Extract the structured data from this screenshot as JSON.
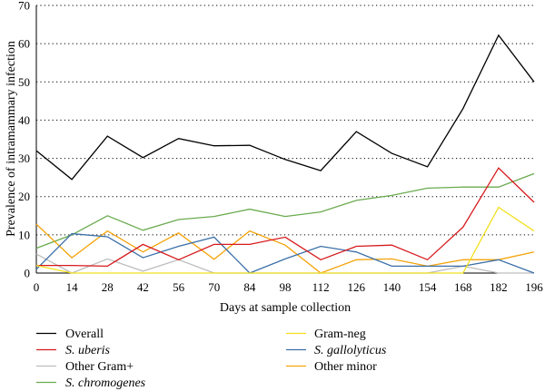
{
  "chart_data": {
    "type": "line",
    "xlabel": "Days at sample collection",
    "ylabel": "Prevalence of intramammary infection",
    "xlim": [
      0,
      196
    ],
    "ylim": [
      0,
      70
    ],
    "x_ticks": [
      0,
      14,
      28,
      42,
      56,
      70,
      84,
      98,
      112,
      126,
      140,
      154,
      168,
      182,
      196
    ],
    "y_ticks": [
      0,
      10,
      20,
      30,
      40,
      50,
      60,
      70
    ],
    "grid": "horizontal-dotted",
    "legend_position": "bottom",
    "x": [
      0,
      14,
      28,
      42,
      56,
      70,
      84,
      98,
      112,
      126,
      140,
      154,
      168,
      182,
      196
    ],
    "series": [
      {
        "name": "Overall",
        "italic": false,
        "color": "#000000",
        "values": [
          32,
          24.5,
          35.8,
          30.2,
          35.2,
          33.3,
          33.4,
          29.7,
          26.8,
          37,
          31.3,
          27.8,
          43,
          62.2,
          50
        ]
      },
      {
        "name": "Gram-neg",
        "italic": false,
        "color": "#f2e01c",
        "values": [
          2,
          0,
          0,
          0,
          0,
          0,
          0,
          0,
          0,
          0,
          0,
          0,
          0,
          17.2,
          11
        ]
      },
      {
        "name": "S. uberis",
        "italic": true,
        "color": "#d7191c",
        "values": [
          2,
          2,
          1.8,
          7.5,
          3.5,
          7.5,
          7.5,
          9.4,
          3.5,
          7,
          7.3,
          3.5,
          12,
          27.5,
          18.5
        ]
      },
      {
        "name": "S. gallolyticus",
        "italic": true,
        "color": "#3b6fa8",
        "values": [
          1,
          10.3,
          9.5,
          4,
          7,
          9.4,
          0,
          3.7,
          7,
          5.5,
          1.8,
          1.8,
          1.8,
          3.5,
          0
        ]
      },
      {
        "name": "Other Gram+",
        "italic": false,
        "color": "#bdbdbd",
        "values": [
          5,
          0,
          3.7,
          0.5,
          3.5,
          0,
          0,
          0,
          0,
          0,
          0,
          0,
          1.8,
          0,
          0
        ]
      },
      {
        "name": "Other minor",
        "italic": false,
        "color": "#f5a30a",
        "values": [
          12.8,
          4,
          11,
          5.5,
          10.5,
          3.6,
          11,
          7.3,
          0,
          3.5,
          3.7,
          1.8,
          3.5,
          3.5,
          5.5
        ]
      },
      {
        "name": "S. chromogenes",
        "italic": true,
        "color": "#6aab4f",
        "values": [
          6.5,
          10,
          15,
          11.2,
          14,
          14.8,
          16.7,
          14.8,
          16,
          19,
          20.3,
          22.2,
          22.5,
          22.5,
          26
        ]
      }
    ]
  }
}
